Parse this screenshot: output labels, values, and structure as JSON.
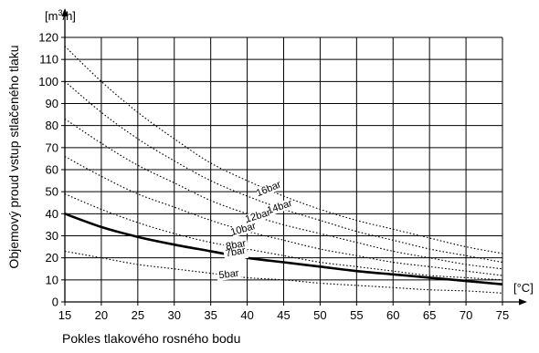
{
  "chart_data": {
    "type": "line",
    "xlabel": "Pokles tlakového rosného bodu",
    "ylabel": "Objemový proud vstup stlačeného tlaku",
    "x_unit": "[°C]",
    "y_unit_prefix": "[m",
    "y_unit_sup": "3",
    "y_unit_suffix": "/h]",
    "xlim": [
      15,
      75
    ],
    "ylim": [
      0,
      120
    ],
    "x_ticks": [
      15,
      20,
      25,
      30,
      35,
      40,
      45,
      50,
      55,
      60,
      65,
      70,
      75
    ],
    "y_ticks": [
      0,
      10,
      20,
      30,
      40,
      50,
      60,
      70,
      80,
      90,
      100,
      110,
      120
    ],
    "grid": true,
    "x": [
      15,
      20,
      25,
      30,
      35,
      40,
      45,
      50,
      55,
      60,
      65,
      70,
      75
    ],
    "series": [
      {
        "name": "16bar",
        "style": "dotted",
        "values": [
          116,
          100,
          86,
          74,
          63,
          55,
          48,
          42,
          37,
          33,
          29,
          25,
          22
        ]
      },
      {
        "name": "14bar",
        "style": "dotted",
        "values": [
          100,
          86,
          74,
          64,
          55,
          48,
          42,
          37,
          32,
          28,
          24,
          21,
          18
        ]
      },
      {
        "name": "12bar",
        "style": "dotted",
        "values": [
          83,
          72,
          62,
          54,
          46,
          40,
          35,
          31,
          27,
          23,
          20,
          17,
          15
        ]
      },
      {
        "name": "10bar",
        "style": "dotted",
        "values": [
          66,
          57,
          49,
          43,
          37,
          32,
          28,
          24,
          21,
          18,
          16,
          14,
          12
        ]
      },
      {
        "name": "8bar",
        "style": "dotted",
        "values": [
          49,
          42,
          36,
          31,
          27,
          24,
          21,
          18,
          16,
          14,
          12,
          11,
          10
        ]
      },
      {
        "name": "7bar",
        "style": "solid",
        "values": [
          40,
          34,
          29.5,
          26,
          23,
          20,
          18,
          16,
          14,
          12.5,
          11,
          9.5,
          8
        ]
      },
      {
        "name": "5bar",
        "style": "dotted",
        "values": [
          23,
          20,
          17,
          15,
          13,
          11,
          10,
          8.5,
          7.5,
          6.5,
          5.5,
          5,
          4
        ]
      }
    ]
  }
}
